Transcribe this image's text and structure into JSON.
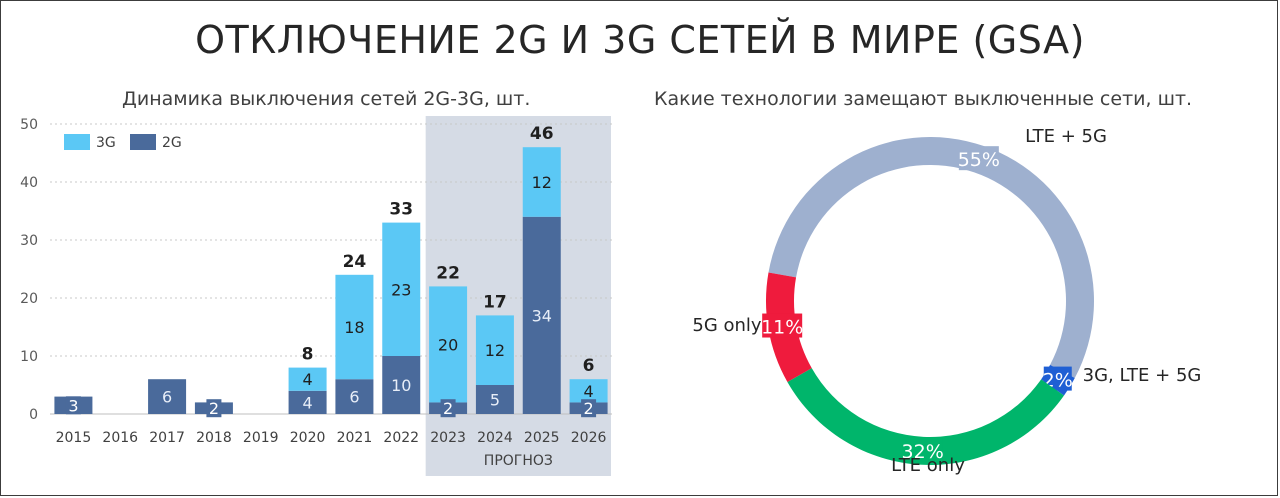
{
  "title": "ОТКЛЮЧЕНИЕ 2G И 3G СЕТЕЙ В МИРЕ (GSA)",
  "chart_data": [
    {
      "type": "bar",
      "stacked": true,
      "title": "Динамика выключения сетей 2G-3G, шт.",
      "categories": [
        "2015",
        "2016",
        "2017",
        "2018",
        "2019",
        "2020",
        "2021",
        "2022",
        "2023",
        "2024",
        "2025",
        "2026"
      ],
      "series": [
        {
          "name": "2G",
          "color": "#4a6a9b",
          "values": [
            3,
            0,
            6,
            2,
            0,
            4,
            6,
            10,
            2,
            5,
            34,
            2
          ]
        },
        {
          "name": "3G",
          "color": "#5bc8f5",
          "values": [
            0,
            0,
            0,
            0,
            0,
            4,
            18,
            23,
            20,
            12,
            12,
            4
          ]
        }
      ],
      "totals": [
        null,
        null,
        null,
        null,
        null,
        "8",
        "24",
        "33",
        "22",
        "17",
        "46",
        "6"
      ],
      "ylim": [
        0,
        50
      ],
      "yticks": [
        "0",
        "10",
        "20",
        "30",
        "40",
        "50"
      ],
      "forecast": {
        "label": "ПРОГНОЗ",
        "from": "2023",
        "to": "2026",
        "color": "#d5dbe5"
      },
      "legend": [
        "3G",
        "2G"
      ],
      "legend_position": "top-left",
      "grid": "dotted horizontal"
    },
    {
      "type": "pie",
      "donut": true,
      "title": "Какие технологии замещают выключенные сети, шт.",
      "slices": [
        {
          "label": "LTE + 5G",
          "value": 55,
          "pct": "55%",
          "color": "#9eb0cf"
        },
        {
          "label": "3G, LTE + 5G",
          "value": 2,
          "pct": "2%",
          "color": "#1f5fd4"
        },
        {
          "label": "LTE only",
          "value": 32,
          "pct": "32%",
          "color": "#00b56b"
        },
        {
          "label": "5G only",
          "value": 11,
          "pct": "11%",
          "color": "#ef1b3d"
        }
      ]
    }
  ]
}
